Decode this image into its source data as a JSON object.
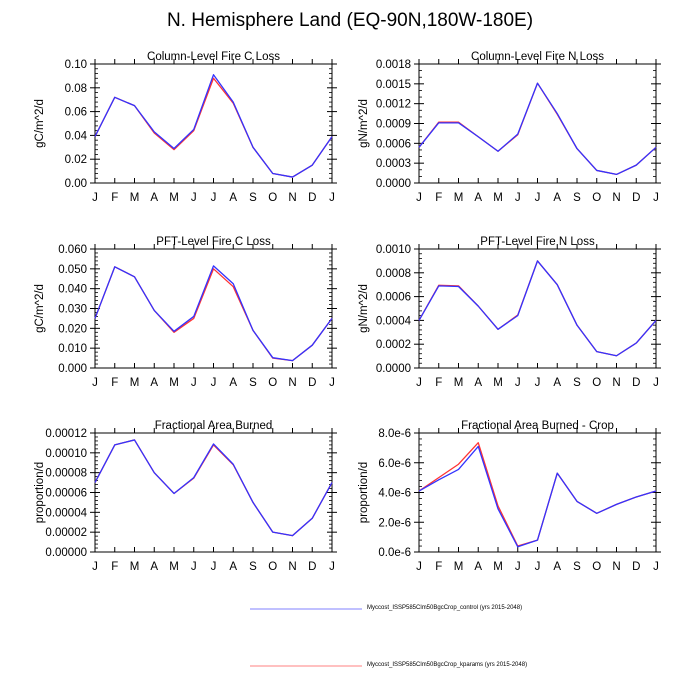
{
  "title": "N. Hemisphere Land (EQ-90N,180W-180E)",
  "colors": {
    "control": "#3333ff",
    "kparams": "#ff3333",
    "axis": "#000000"
  },
  "legend": [
    {
      "label": "Myccost_ISSP585Clm50BgcCrop_control (yrs 2015-2048)",
      "color": "#8080ff",
      "series": "control"
    },
    {
      "label": "Myccost_ISSP585Clm50BgcCrop_kparams (yrs 2015-2048)",
      "color": "#ff8080",
      "series": "kparams"
    }
  ],
  "chart_data": [
    {
      "type": "line",
      "title": "Column-Level Fire C Loss",
      "ylabel": "gC/m^2/d",
      "xlabel": "",
      "categories": [
        "J",
        "F",
        "M",
        "A",
        "M",
        "J",
        "J",
        "A",
        "S",
        "O",
        "N",
        "D",
        "J"
      ],
      "ylim": [
        0,
        0.1
      ],
      "yticks": [
        "0.00",
        "0.02",
        "0.04",
        "0.06",
        "0.08",
        "0.10"
      ],
      "ytick_values": [
        0,
        0.02,
        0.04,
        0.06,
        0.08,
        0.1
      ],
      "yminor_per_major": 4,
      "series": [
        {
          "name": "Myccost_ISSP585Clm50BgcCrop_kparams",
          "color": "#ff3333",
          "values": [
            0.039,
            0.072,
            0.065,
            0.042,
            0.028,
            0.044,
            0.088,
            0.067,
            0.03,
            0.008,
            0.005,
            0.015,
            0.039
          ]
        },
        {
          "name": "Myccost_ISSP585Clm50BgcCrop_control",
          "color": "#3333ff",
          "values": [
            0.039,
            0.072,
            0.065,
            0.043,
            0.029,
            0.045,
            0.091,
            0.068,
            0.03,
            0.008,
            0.005,
            0.015,
            0.039
          ]
        }
      ]
    },
    {
      "type": "line",
      "title": "Column-Level Fire N Loss",
      "ylabel": "gN/m^2/d",
      "xlabel": "",
      "categories": [
        "J",
        "F",
        "M",
        "A",
        "M",
        "J",
        "J",
        "A",
        "S",
        "O",
        "N",
        "D",
        "J"
      ],
      "ylim": [
        0,
        0.0018
      ],
      "yticks": [
        "0.0000",
        "0.0003",
        "0.0006",
        "0.0009",
        "0.0012",
        "0.0015",
        "0.0018"
      ],
      "ytick_values": [
        0,
        0.0003,
        0.0006,
        0.0009,
        0.0012,
        0.0015,
        0.0018
      ],
      "yminor_per_major": 2,
      "series": [
        {
          "name": "Myccost_ISSP585Clm50BgcCrop_kparams",
          "color": "#ff3333",
          "values": [
            0.00054,
            0.00092,
            0.00092,
            0.0007,
            0.00048,
            0.00073,
            0.00151,
            0.00104,
            0.00052,
            0.00019,
            0.00013,
            0.00027,
            0.00054
          ]
        },
        {
          "name": "Myccost_ISSP585Clm50BgcCrop_control",
          "color": "#3333ff",
          "values": [
            0.00054,
            0.00091,
            0.00091,
            0.0007,
            0.00048,
            0.00074,
            0.00151,
            0.00105,
            0.00052,
            0.00019,
            0.00013,
            0.00027,
            0.00054
          ]
        }
      ]
    },
    {
      "type": "line",
      "title": "PFT-Level Fire C Loss",
      "ylabel": "gC/m^2/d",
      "xlabel": "",
      "categories": [
        "J",
        "F",
        "M",
        "A",
        "M",
        "J",
        "J",
        "A",
        "S",
        "O",
        "N",
        "D",
        "J"
      ],
      "ylim": [
        0,
        0.06
      ],
      "yticks": [
        "0.000",
        "0.010",
        "0.020",
        "0.030",
        "0.040",
        "0.050",
        "0.060"
      ],
      "ytick_values": [
        0,
        0.01,
        0.02,
        0.03,
        0.04,
        0.05,
        0.06
      ],
      "yminor_per_major": 4,
      "series": [
        {
          "name": "Myccost_ISSP585Clm50BgcCrop_kparams",
          "color": "#ff3333",
          "values": [
            0.025,
            0.051,
            0.046,
            0.029,
            0.018,
            0.025,
            0.05,
            0.041,
            0.019,
            0.005,
            0.0037,
            0.0115,
            0.025
          ]
        },
        {
          "name": "Myccost_ISSP585Clm50BgcCrop_control",
          "color": "#3333ff",
          "values": [
            0.025,
            0.051,
            0.046,
            0.029,
            0.0185,
            0.026,
            0.0515,
            0.0425,
            0.019,
            0.0052,
            0.0037,
            0.0115,
            0.025
          ]
        }
      ]
    },
    {
      "type": "line",
      "title": "PFT-Level Fire N Loss",
      "ylabel": "gN/m^2/d",
      "xlabel": "",
      "categories": [
        "J",
        "F",
        "M",
        "A",
        "M",
        "J",
        "J",
        "A",
        "S",
        "O",
        "N",
        "D",
        "J"
      ],
      "ylim": [
        0,
        0.001
      ],
      "yticks": [
        "0.0000",
        "0.0002",
        "0.0004",
        "0.0006",
        "0.0008",
        "0.0010"
      ],
      "ytick_values": [
        0,
        0.0002,
        0.0004,
        0.0006,
        0.0008,
        0.001
      ],
      "yminor_per_major": 4,
      "series": [
        {
          "name": "Myccost_ISSP585Clm50BgcCrop_kparams",
          "color": "#ff3333",
          "values": [
            0.0004,
            0.000695,
            0.00069,
            0.00052,
            0.000325,
            0.000445,
            0.0009,
            0.0007,
            0.00036,
            0.000138,
            0.000103,
            0.00021,
            0.0004
          ]
        },
        {
          "name": "Myccost_ISSP585Clm50BgcCrop_control",
          "color": "#3333ff",
          "values": [
            0.0004,
            0.00069,
            0.000685,
            0.00052,
            0.000325,
            0.00044,
            0.0009,
            0.0007,
            0.00036,
            0.000138,
            0.000103,
            0.00021,
            0.0004
          ]
        }
      ]
    },
    {
      "type": "line",
      "title": "Fractional Area Burned",
      "ylabel": "proportion/d",
      "xlabel": "",
      "categories": [
        "J",
        "F",
        "M",
        "A",
        "M",
        "J",
        "J",
        "A",
        "S",
        "O",
        "N",
        "D",
        "J"
      ],
      "ylim": [
        0,
        0.00012
      ],
      "yticks": [
        "0.00000",
        "0.00002",
        "0.00004",
        "0.00006",
        "0.00008",
        "0.00010",
        "0.00012"
      ],
      "ytick_values": [
        0,
        2e-05,
        4e-05,
        6e-05,
        8e-05,
        0.0001,
        0.00012
      ],
      "yminor_per_major": 4,
      "series": [
        {
          "name": "Myccost_ISSP585Clm50BgcCrop_kparams",
          "color": "#ff3333",
          "values": [
            7e-05,
            0.000108,
            0.000113,
            8e-05,
            5.9e-05,
            7.45e-05,
            0.000108,
            8.8e-05,
            5e-05,
            2e-05,
            1.65e-05,
            3.4e-05,
            7e-05
          ]
        },
        {
          "name": "Myccost_ISSP585Clm50BgcCrop_control",
          "color": "#3333ff",
          "values": [
            7e-05,
            0.000108,
            0.000113,
            8e-05,
            5.9e-05,
            7.5e-05,
            0.000109,
            8.85e-05,
            5e-05,
            2e-05,
            1.65e-05,
            3.4e-05,
            7e-05
          ]
        }
      ]
    },
    {
      "type": "line",
      "title": "Fractional Area Burned - Crop",
      "ylabel": "proportion/d",
      "xlabel": "",
      "categories": [
        "J",
        "F",
        "M",
        "A",
        "M",
        "J",
        "J",
        "A",
        "S",
        "O",
        "N",
        "D",
        "J"
      ],
      "ylim": [
        0,
        8e-06
      ],
      "yticks": [
        "0.0e-6",
        "2.0e-6",
        "4.0e-6",
        "6.0e-6",
        "8.0e-6"
      ],
      "ytick_values": [
        0,
        2e-06,
        4e-06,
        6e-06,
        8e-06
      ],
      "yminor_per_major": 4,
      "series": [
        {
          "name": "Myccost_ISSP585Clm50BgcCrop_kparams",
          "color": "#ff3333",
          "values": [
            4.1e-06,
            5e-06,
            5.9e-06,
            7.35e-06,
            3.1e-06,
            4e-07,
            8e-07,
            5.3e-06,
            3.4e-06,
            2.6e-06,
            3.2e-06,
            3.7e-06,
            4.1e-06
          ]
        },
        {
          "name": "Myccost_ISSP585Clm50BgcCrop_control",
          "color": "#3333ff",
          "values": [
            4.1e-06,
            4.85e-06,
            5.55e-06,
            7.1e-06,
            2.9e-06,
            3.5e-07,
            8e-07,
            5.3e-06,
            3.4e-06,
            2.6e-06,
            3.2e-06,
            3.7e-06,
            4.1e-06
          ]
        }
      ]
    }
  ]
}
